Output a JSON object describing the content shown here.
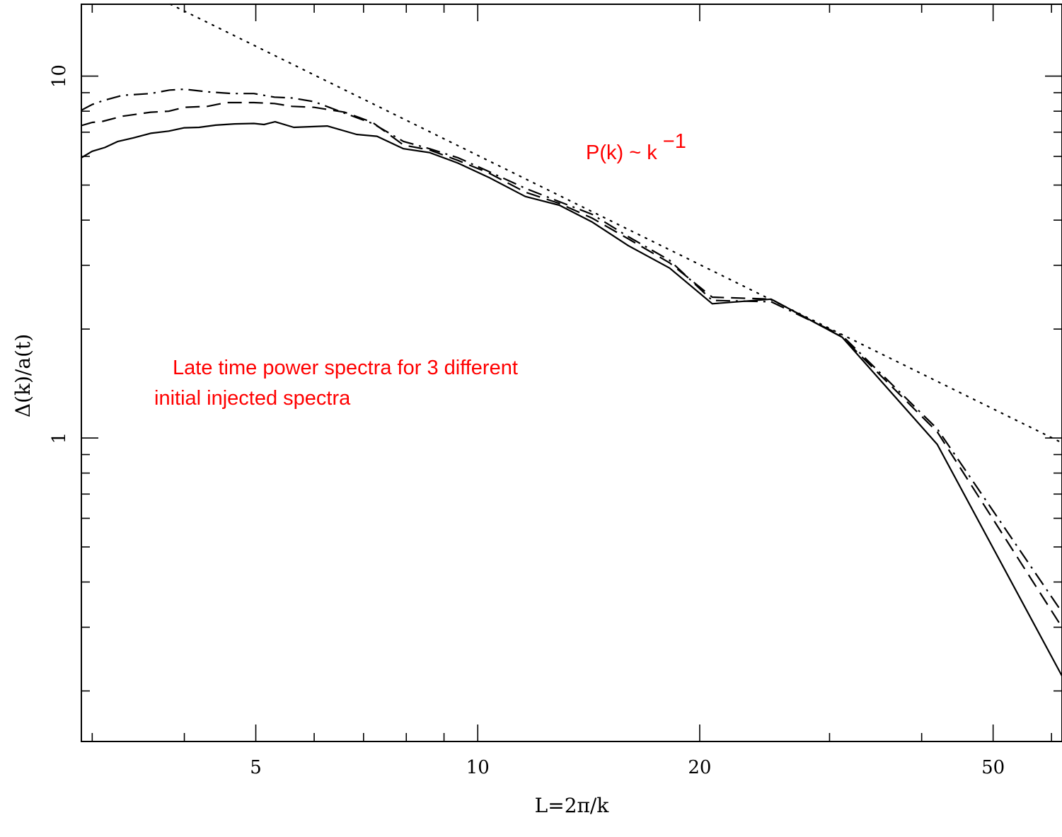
{
  "chart_data": {
    "type": "line",
    "xscale": "log",
    "yscale": "log",
    "xlabel": "L=2π/k",
    "ylabel": "Δ(k)/a(t)",
    "xlim": [
      2.9,
      62
    ],
    "ylim": [
      0.145,
      15.8
    ],
    "grid": false,
    "legend": "none",
    "x_ticks": [
      {
        "value": 5,
        "label": "5"
      },
      {
        "value": 10,
        "label": "10"
      },
      {
        "value": 20,
        "label": "20"
      },
      {
        "value": 50,
        "label": "50"
      }
    ],
    "x_minor_ticks": [
      3,
      4,
      6,
      7,
      8,
      9,
      30,
      40,
      60
    ],
    "y_ticks": [
      {
        "value": 1,
        "label": "1"
      },
      {
        "value": 10,
        "label": "10"
      }
    ],
    "y_minor_ticks": [
      0.2,
      0.3,
      0.4,
      0.5,
      0.6,
      0.7,
      0.8,
      0.9,
      2,
      3,
      4,
      5,
      6,
      7,
      8,
      9
    ],
    "series": [
      {
        "style": "solid",
        "x": [
          2.9,
          3.0,
          3.12,
          3.25,
          3.41,
          3.6,
          3.81,
          4.0,
          4.19,
          4.41,
          4.68,
          4.97,
          5.13,
          5.31,
          5.63,
          6.25,
          6.85,
          7.3,
          7.93,
          8.6,
          9.4,
          10.35,
          11.6,
          12.9,
          14.3,
          16.0,
          18.2,
          20.8,
          25.0,
          31.2,
          42.0,
          62.0
        ],
        "y": [
          5.95,
          6.2,
          6.35,
          6.6,
          6.75,
          6.95,
          7.05,
          7.2,
          7.22,
          7.32,
          7.38,
          7.4,
          7.35,
          7.48,
          7.22,
          7.28,
          6.9,
          6.82,
          6.3,
          6.15,
          5.75,
          5.25,
          4.65,
          4.4,
          3.95,
          3.4,
          2.95,
          2.35,
          2.42,
          1.9,
          0.96,
          0.22
        ]
      },
      {
        "style": "dashed",
        "x": [
          2.9,
          3.0,
          3.1,
          3.3,
          3.6,
          3.81,
          4.0,
          4.3,
          4.56,
          4.97,
          5.3,
          5.6,
          6.0,
          6.6,
          7.2,
          7.93,
          8.6,
          9.4,
          10.35,
          11.6,
          12.9,
          14.3,
          16.0,
          18.2,
          20.8,
          25.0,
          31.2,
          42.0,
          62.0
        ],
        "y": [
          7.3,
          7.45,
          7.5,
          7.75,
          7.95,
          8.0,
          8.2,
          8.25,
          8.45,
          8.45,
          8.4,
          8.25,
          8.2,
          7.95,
          7.45,
          6.45,
          6.25,
          5.85,
          5.4,
          4.78,
          4.45,
          4.05,
          3.55,
          3.05,
          2.45,
          2.42,
          1.9,
          1.04,
          0.3
        ]
      },
      {
        "style": "dashdot",
        "x": [
          2.9,
          3.0,
          3.1,
          3.3,
          3.6,
          3.82,
          4.0,
          4.3,
          4.64,
          4.97,
          5.3,
          5.6,
          6.0,
          6.6,
          7.2,
          7.93,
          8.6,
          9.4,
          10.35,
          11.6,
          12.9,
          14.3,
          16.0,
          18.2,
          20.8,
          25.0,
          31.2,
          42.0,
          62.0
        ],
        "y": [
          8.05,
          8.35,
          8.55,
          8.85,
          8.95,
          9.15,
          9.2,
          9.05,
          8.95,
          8.95,
          8.75,
          8.7,
          8.5,
          7.9,
          7.4,
          6.6,
          6.3,
          5.95,
          5.45,
          4.9,
          4.5,
          4.15,
          3.6,
          3.1,
          2.4,
          2.38,
          1.92,
          1.06,
          0.33
        ]
      },
      {
        "style": "dotted",
        "x": [
          3.83,
          62.0
        ],
        "y": [
          15.8,
          0.97
        ]
      }
    ],
    "annotations": [
      {
        "base": "P(k) ~ k ",
        "sup": "−1",
        "color": "#ff0000"
      },
      {
        "lines": [
          "Late time power spectra for 3 different",
          "initial injected spectra"
        ],
        "color": "#ff0000"
      }
    ]
  }
}
